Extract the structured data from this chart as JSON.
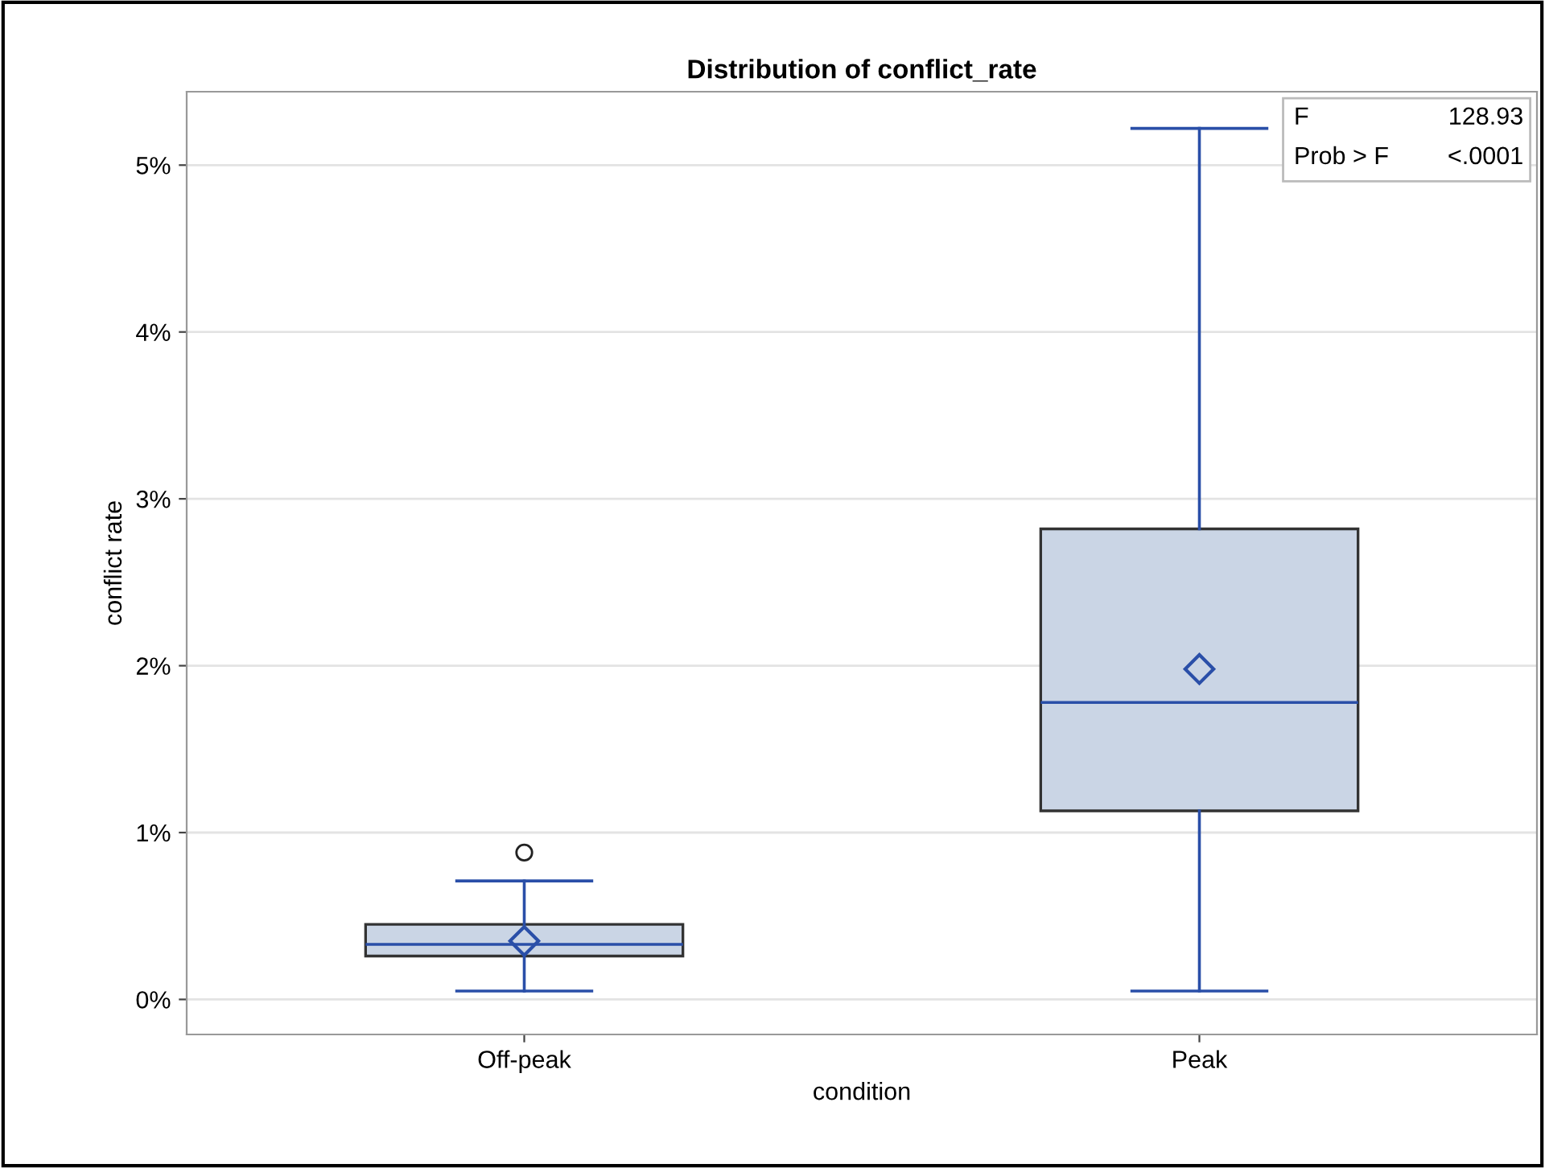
{
  "chart_data": {
    "type": "box",
    "title": "Distribution of conflict_rate",
    "xlabel": "condition",
    "ylabel": "conflict rate",
    "categories": [
      "Off-peak",
      "Peak"
    ],
    "boxes": [
      {
        "low": 0.05,
        "q1": 0.26,
        "median": 0.33,
        "q3": 0.45,
        "high": 0.71,
        "mean": 0.35,
        "outliers": [
          0.88
        ]
      },
      {
        "low": 0.05,
        "q1": 1.13,
        "median": 1.78,
        "q3": 2.82,
        "high": 5.22,
        "mean": 1.98
      }
    ],
    "color": "#2a4fa8",
    "colors": [
      "#cad5e5",
      "#cad5e5"
    ],
    "ylim": [
      -0.21,
      5.44
    ],
    "yticks": [
      {
        "value": 0,
        "label": "0%"
      },
      {
        "value": 1,
        "label": "1%"
      },
      {
        "value": 2,
        "label": "2%"
      },
      {
        "value": 3,
        "label": "3%"
      },
      {
        "value": 4,
        "label": "4%"
      },
      {
        "value": 5,
        "label": "5%"
      }
    ],
    "grid": "y",
    "annotations": [
      "F",
      "128.93",
      "Prob > F",
      "<.0001"
    ]
  }
}
